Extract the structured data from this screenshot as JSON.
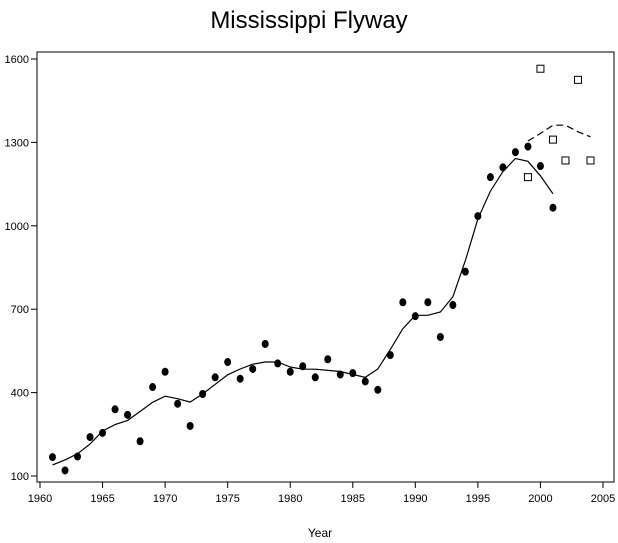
{
  "chart_data": {
    "type": "scatter",
    "title": "Mississippi Flyway",
    "xlabel": "Year",
    "ylabel": "",
    "xlim": [
      1960,
      2005
    ],
    "ylim": [
      100,
      1600
    ],
    "xticks": [
      1960,
      1965,
      1970,
      1975,
      1980,
      1985,
      1990,
      1995,
      2000,
      2005
    ],
    "yticks": [
      100,
      400,
      700,
      1000,
      1300,
      1600
    ],
    "grid": false,
    "legend": "none",
    "series": [
      {
        "marker": "filled-circle",
        "style": "points",
        "x": [
          1961,
          1962,
          1963,
          1964,
          1965,
          1966,
          1967,
          1968,
          1969,
          1970,
          1971,
          1972,
          1973,
          1974,
          1975,
          1976,
          1977,
          1978,
          1979,
          1980,
          1981,
          1982,
          1983,
          1984,
          1985,
          1986,
          1987,
          1988,
          1989,
          1990,
          1991,
          1992,
          1993,
          1994,
          1995,
          1996,
          1997,
          1998,
          1999,
          2000,
          2001
        ],
        "y": [
          168,
          120,
          170,
          240,
          255,
          340,
          320,
          225,
          420,
          475,
          360,
          280,
          395,
          455,
          510,
          450,
          485,
          575,
          505,
          475,
          495,
          455,
          520,
          465,
          470,
          440,
          410,
          535,
          725,
          675,
          725,
          600,
          715,
          835,
          1035,
          1175,
          1210,
          1265,
          1285,
          1215,
          1065
        ]
      },
      {
        "marker": "open-square",
        "style": "points",
        "x": [
          1999,
          2000,
          2001,
          2002,
          2003,
          2004
        ],
        "y": [
          1175,
          1565,
          1310,
          1235,
          1525,
          1235
        ]
      },
      {
        "style": "solid-line",
        "x": [
          1961,
          1962,
          1963,
          1964,
          1965,
          1966,
          1967,
          1968,
          1969,
          1970,
          1971,
          1972,
          1973,
          1974,
          1975,
          1976,
          1977,
          1978,
          1979,
          1980,
          1981,
          1982,
          1983,
          1984,
          1985,
          1986,
          1987,
          1988,
          1989,
          1990,
          1991,
          1992,
          1993,
          1994,
          1995,
          1996,
          1997,
          1998,
          1999,
          2000,
          2001
        ],
        "y": [
          140,
          158,
          180,
          215,
          262,
          285,
          300,
          332,
          365,
          387,
          378,
          366,
          395,
          430,
          464,
          485,
          502,
          510,
          510,
          492,
          484,
          484,
          480,
          476,
          465,
          455,
          485,
          555,
          630,
          678,
          678,
          690,
          745,
          875,
          1025,
          1125,
          1195,
          1242,
          1232,
          1180,
          1115
        ]
      },
      {
        "style": "dashed-line",
        "x": [
          1999,
          2000,
          2001,
          2002,
          2003,
          2004
        ],
        "y": [
          1305,
          1332,
          1362,
          1362,
          1338,
          1320
        ]
      }
    ]
  }
}
